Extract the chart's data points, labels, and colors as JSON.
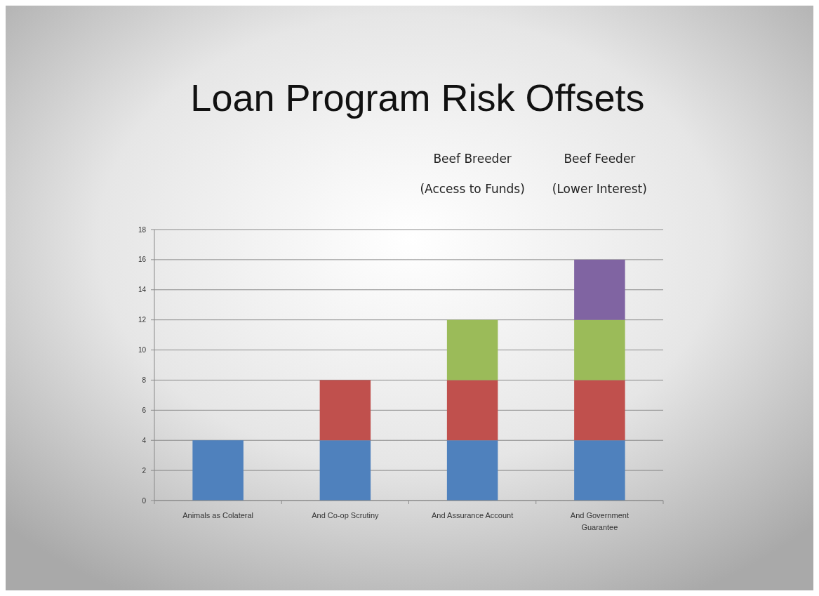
{
  "chart_data": {
    "type": "bar",
    "title": "Loan Program Risk Offsets",
    "stacked": true,
    "categories": [
      "Animals as Colateral",
      "And Co-op Scrutiny",
      "And Assurance Account",
      "And Government Guarantee"
    ],
    "series": [
      {
        "color": "#4f81bd",
        "values": [
          4,
          4,
          4,
          4
        ]
      },
      {
        "color": "#c0504d",
        "values": [
          null,
          4,
          4,
          4
        ]
      },
      {
        "color": "#9bbb59",
        "values": [
          null,
          null,
          4,
          4
        ]
      },
      {
        "color": "#8064a2",
        "values": [
          null,
          null,
          null,
          4
        ]
      }
    ],
    "ylim": [
      0,
      18
    ],
    "yticks": [
      0,
      2,
      4,
      6,
      8,
      10,
      12,
      14,
      16,
      18
    ],
    "grid": "y",
    "annotations": [
      "Beef Breeder\n(Access to Funds)",
      "Beef Feeder\n(Lower Interest)"
    ]
  }
}
